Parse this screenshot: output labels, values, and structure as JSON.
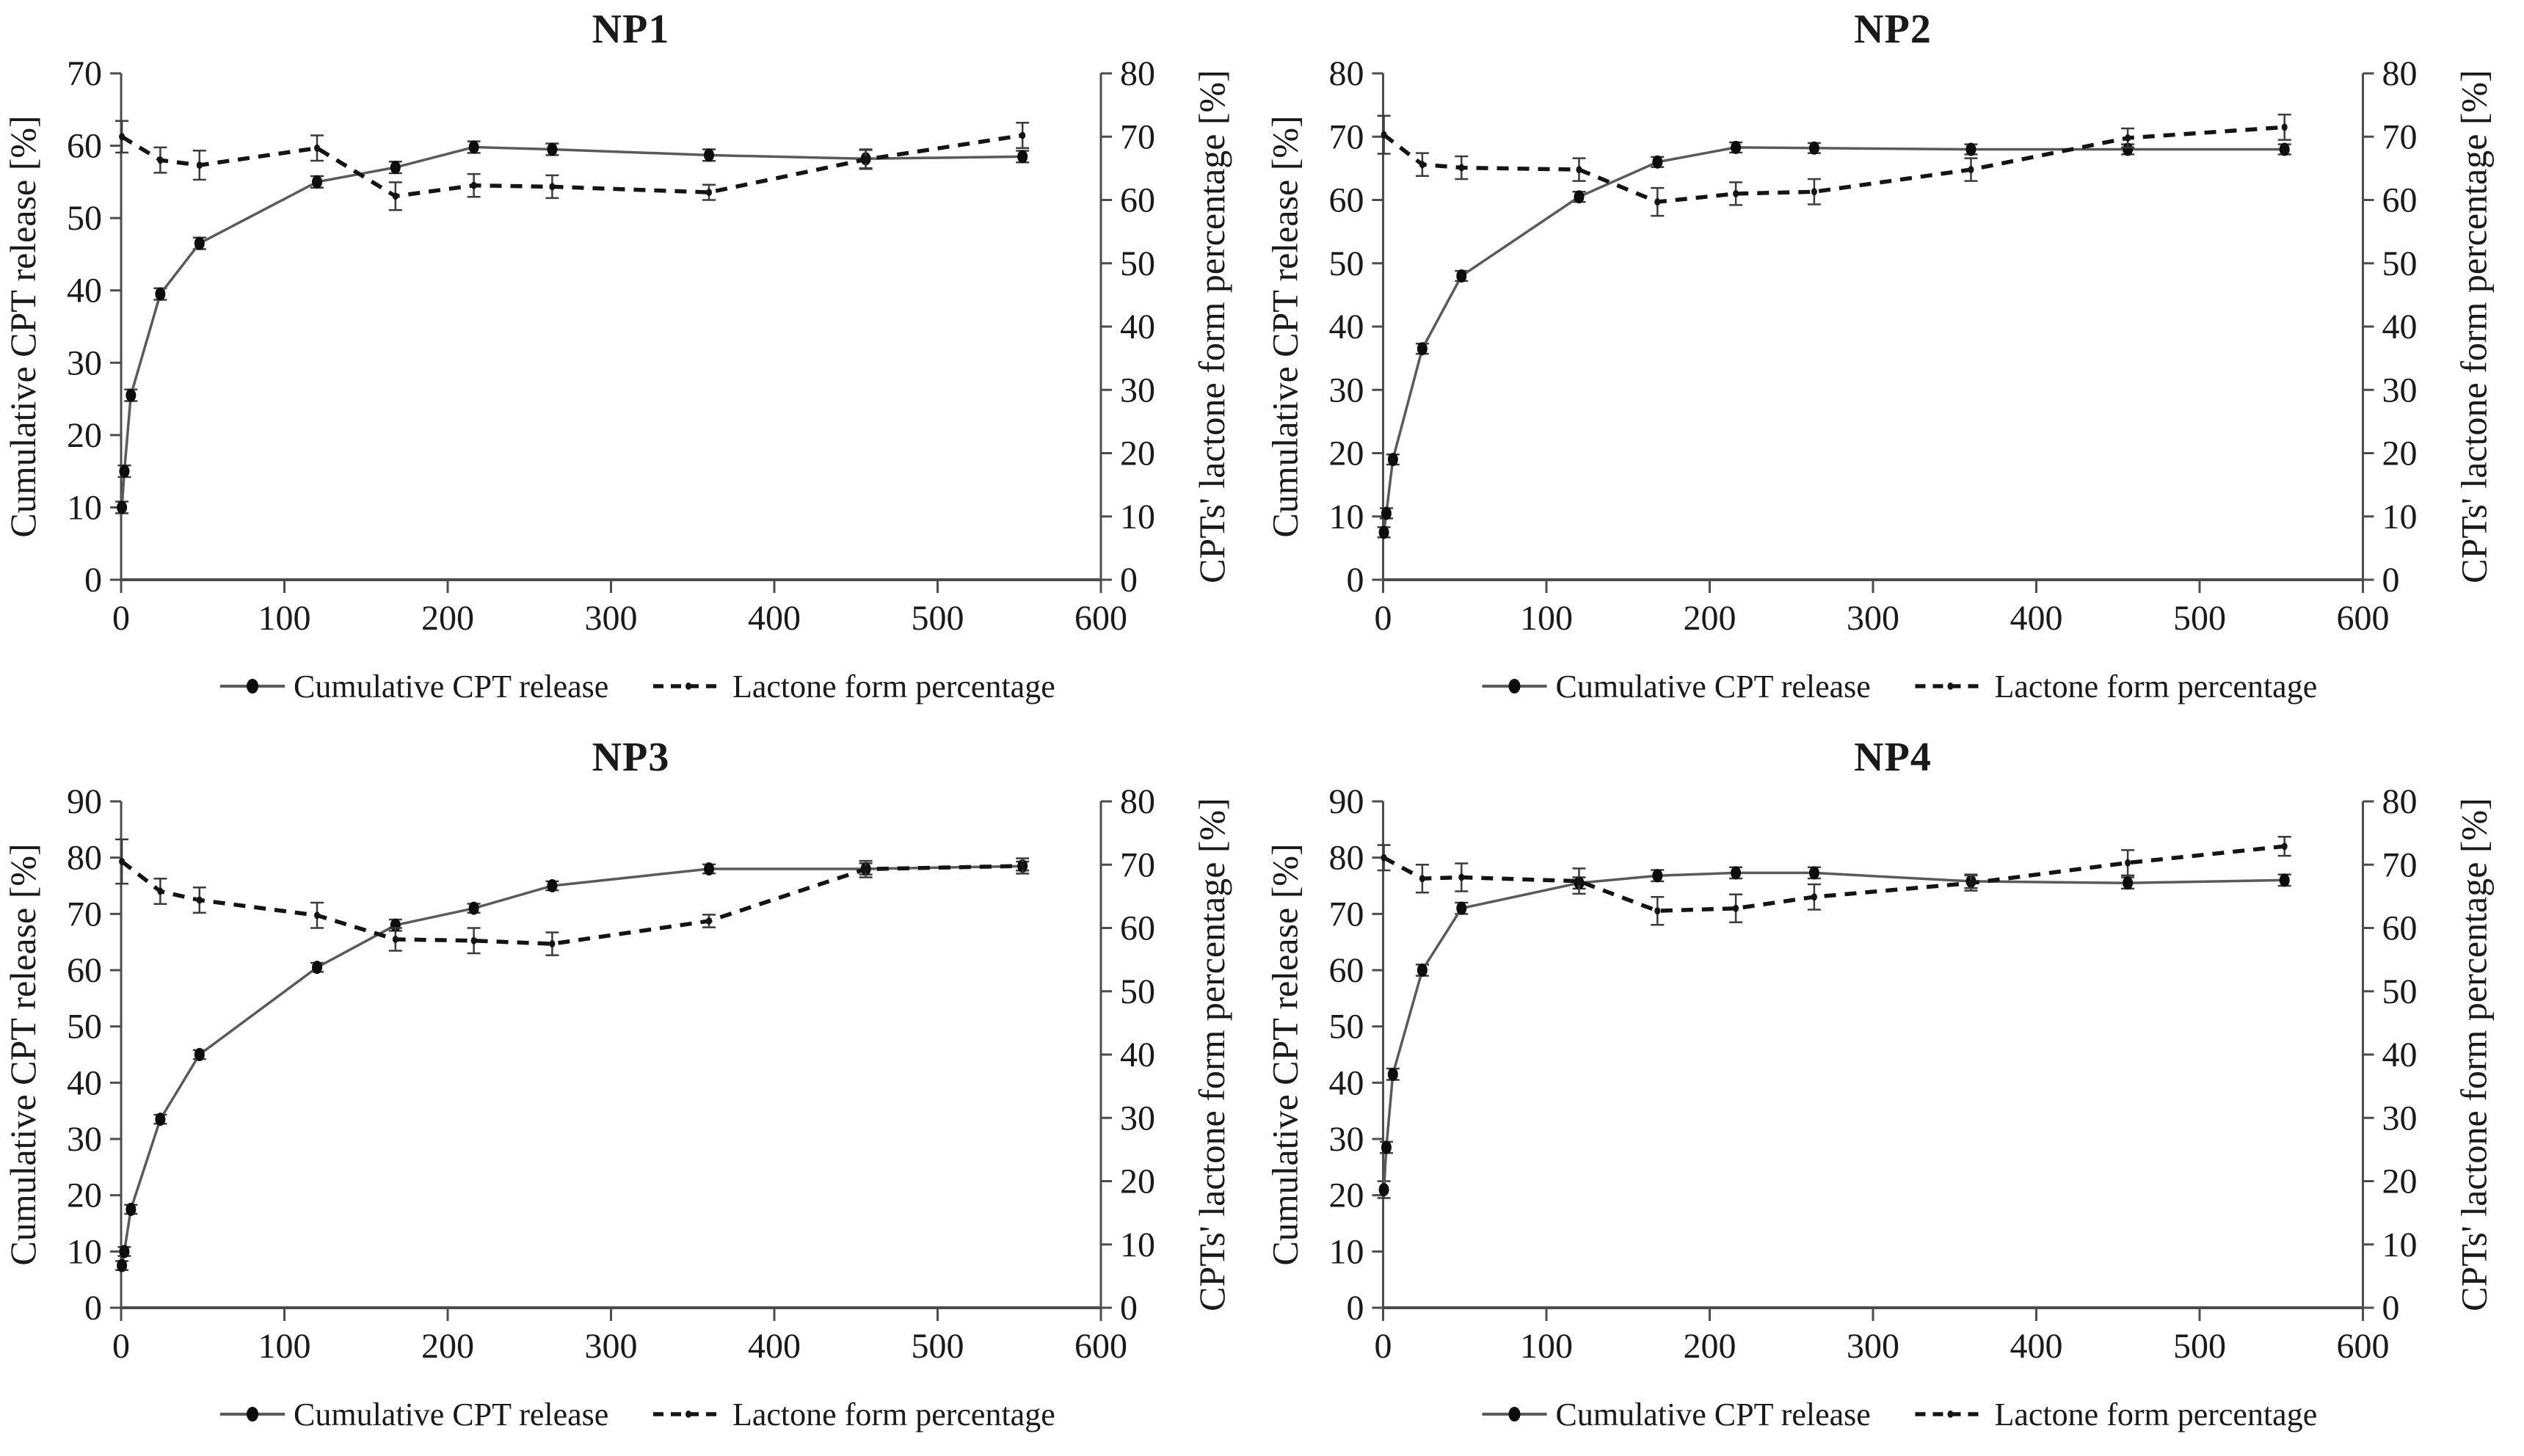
{
  "figure_title": "",
  "chart_data": [
    {
      "type": "line",
      "title": "NP1",
      "xlabel": "",
      "ylabel_left": "Cumulative CPT release [%]",
      "ylabel_right": "CPTs' lactone form percentage [%]",
      "xlim": [
        0,
        600
      ],
      "x_ticks": [
        0,
        100,
        200,
        300,
        400,
        500,
        600
      ],
      "ylim_left": [
        0,
        70
      ],
      "ylim_right": [
        0,
        80
      ],
      "ytick_step": 10,
      "grid": false,
      "legend_position": "bottom",
      "series": [
        {
          "name": "Cumulative CPT release",
          "axis": "left",
          "style": "solid-dot",
          "x": [
            0.5,
            2,
            6,
            24,
            48,
            120,
            168,
            216,
            264,
            360,
            456,
            552
          ],
          "y": [
            10,
            15,
            25.5,
            39.5,
            46.5,
            55,
            57,
            59.8,
            59.5,
            58.7,
            58.2,
            58.5
          ],
          "err": [
            0.8,
            0.8,
            0.8,
            0.8,
            0.8,
            0.8,
            0.8,
            0.8,
            0.8,
            0.8,
            1.3,
            0.8
          ]
        },
        {
          "name": "Lactone form percentage",
          "axis": "right",
          "style": "dashed",
          "x": [
            0.5,
            24,
            48,
            120,
            168,
            216,
            264,
            360,
            456,
            552
          ],
          "y": [
            70,
            66.3,
            65.5,
            68.2,
            60.6,
            62.3,
            62.1,
            61.2,
            66.4,
            70.2
          ],
          "err": [
            2.5,
            2.0,
            2.3,
            2.0,
            2.2,
            1.8,
            1.8,
            1.2,
            1.5,
            2.0
          ]
        }
      ]
    },
    {
      "type": "line",
      "title": "NP2",
      "xlabel": "",
      "ylabel_left": "Cumulative CPT release [%]",
      "ylabel_right": "CPTs' lactone form percentage [%]",
      "xlim": [
        0,
        600
      ],
      "x_ticks": [
        0,
        100,
        200,
        300,
        400,
        500,
        600
      ],
      "ylim_left": [
        0,
        80
      ],
      "ylim_right": [
        0,
        80
      ],
      "ytick_step": 10,
      "grid": false,
      "legend_position": "bottom",
      "series": [
        {
          "name": "Cumulative CPT release",
          "axis": "left",
          "style": "solid-dot",
          "x": [
            0.5,
            2,
            6,
            24,
            48,
            120,
            168,
            216,
            264,
            360,
            456,
            552
          ],
          "y": [
            7.5,
            10.5,
            19,
            36.5,
            48,
            60.5,
            66,
            68.3,
            68.2,
            68,
            68,
            68
          ],
          "err": [
            0.8,
            0.8,
            0.8,
            0.8,
            0.8,
            0.8,
            0.8,
            0.8,
            0.8,
            0.8,
            0.8,
            0.8
          ]
        },
        {
          "name": "Lactone form percentage",
          "axis": "right",
          "style": "dashed",
          "x": [
            0.5,
            24,
            48,
            120,
            168,
            216,
            264,
            360,
            456,
            552
          ],
          "y": [
            70.3,
            65.6,
            65.1,
            64.8,
            59.7,
            61,
            61.3,
            64.8,
            69.8,
            71.5
          ],
          "err": [
            3.0,
            1.8,
            1.8,
            1.8,
            2.2,
            1.8,
            2.0,
            1.8,
            1.5,
            2.0
          ]
        }
      ]
    },
    {
      "type": "line",
      "title": "NP3",
      "xlabel": "",
      "ylabel_left": "Cumulative CPT release [%]",
      "ylabel_right": "CPTs' lactone form percentage [%]",
      "xlim": [
        0,
        600
      ],
      "x_ticks": [
        0,
        100,
        200,
        300,
        400,
        500,
        600
      ],
      "ylim_left": [
        0,
        90
      ],
      "ylim_right": [
        0,
        80
      ],
      "ytick_step": 10,
      "grid": false,
      "legend_position": "bottom",
      "series": [
        {
          "name": "Cumulative CPT release",
          "axis": "left",
          "style": "solid-dot",
          "x": [
            0.5,
            2,
            6,
            24,
            48,
            120,
            168,
            216,
            264,
            360,
            456,
            552
          ],
          "y": [
            7.5,
            10,
            17.5,
            33.5,
            45,
            60.5,
            68,
            71,
            75,
            78,
            78,
            78.5
          ],
          "err": [
            0.8,
            0.8,
            0.8,
            0.8,
            0.8,
            0.8,
            1.0,
            0.8,
            0.8,
            0.8,
            1.0,
            0.8
          ]
        },
        {
          "name": "Lactone form percentage",
          "axis": "right",
          "style": "dashed",
          "x": [
            0.5,
            24,
            48,
            120,
            168,
            216,
            264,
            360,
            456,
            552
          ],
          "y": [
            70.5,
            65.8,
            64.4,
            62.0,
            58.2,
            58.0,
            57.5,
            61.1,
            69.3,
            69.8
          ],
          "err": [
            3.5,
            2.0,
            2.0,
            2.0,
            1.8,
            2.0,
            1.8,
            1.0,
            1.3,
            1.2
          ]
        }
      ]
    },
    {
      "type": "line",
      "title": "NP4",
      "xlabel": "",
      "ylabel_left": "Cumulative CPT release [%]",
      "ylabel_right": "CPTs' lactone form percentage [%]",
      "xlim": [
        0,
        600
      ],
      "x_ticks": [
        0,
        100,
        200,
        300,
        400,
        500,
        600
      ],
      "ylim_left": [
        0,
        90
      ],
      "ylim_right": [
        0,
        80
      ],
      "ytick_step": 10,
      "grid": false,
      "legend_position": "bottom",
      "series": [
        {
          "name": "Cumulative CPT release",
          "axis": "left",
          "style": "solid-dot",
          "x": [
            0.5,
            2,
            6,
            24,
            48,
            120,
            168,
            216,
            264,
            360,
            456,
            552
          ],
          "y": [
            21,
            28.5,
            41.5,
            60,
            71,
            75.5,
            76.8,
            77.3,
            77.3,
            75.8,
            75.5,
            76
          ],
          "err": [
            1.5,
            1.0,
            1.0,
            1.0,
            1.0,
            1.0,
            1.0,
            1.0,
            1.0,
            1.2,
            1.0,
            1.0
          ]
        },
        {
          "name": "Lactone form percentage",
          "axis": "right",
          "style": "dashed",
          "x": [
            0.5,
            24,
            48,
            120,
            168,
            216,
            264,
            360,
            456,
            552
          ],
          "y": [
            71.1,
            67.8,
            68.0,
            67.4,
            62.7,
            63.1,
            64.9,
            67.1,
            70.3,
            72.9
          ],
          "err": [
            2.0,
            2.2,
            2.2,
            2.0,
            2.2,
            2.2,
            2.0,
            1.2,
            2.0,
            1.5
          ]
        }
      ]
    }
  ],
  "colors": {
    "axis": "#4d4d4d",
    "solid_line": "#5a5a5a",
    "marker": "#0d0d0d",
    "dashed_line": "#141414",
    "error_bar": "#3c3c3c",
    "text": "#1a1a1a"
  }
}
